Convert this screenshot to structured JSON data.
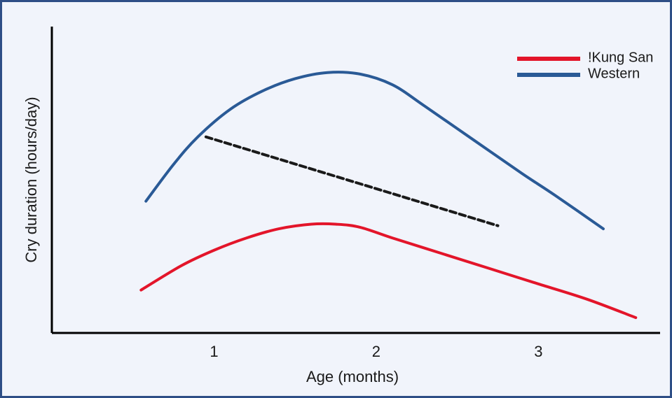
{
  "chart_data": {
    "type": "line",
    "xlabel": "Age (months)",
    "ylabel": "Cry duration (hours/day)",
    "xlim": [
      0,
      3.75
    ],
    "ylim": [
      0,
      1
    ],
    "x_ticks": [
      1,
      2,
      3
    ],
    "y_ticks": [],
    "grid": false,
    "legend_position": "top-right",
    "series": [
      {
        "name": "!Kung San",
        "color": "#e3152a",
        "style": "solid",
        "points": [
          [
            0.55,
            0.14
          ],
          [
            0.8,
            0.22
          ],
          [
            1.0,
            0.27
          ],
          [
            1.2,
            0.31
          ],
          [
            1.4,
            0.34
          ],
          [
            1.6,
            0.355
          ],
          [
            1.75,
            0.355
          ],
          [
            1.9,
            0.345
          ],
          [
            2.1,
            0.31
          ],
          [
            2.4,
            0.26
          ],
          [
            2.7,
            0.21
          ],
          [
            3.0,
            0.16
          ],
          [
            3.3,
            0.11
          ],
          [
            3.6,
            0.05
          ]
        ]
      },
      {
        "name": "Western",
        "color": "#2a5a96",
        "style": "solid",
        "points": [
          [
            0.58,
            0.43
          ],
          [
            0.75,
            0.55
          ],
          [
            0.9,
            0.64
          ],
          [
            1.1,
            0.73
          ],
          [
            1.3,
            0.79
          ],
          [
            1.5,
            0.83
          ],
          [
            1.7,
            0.85
          ],
          [
            1.9,
            0.845
          ],
          [
            2.1,
            0.81
          ],
          [
            2.3,
            0.74
          ],
          [
            2.6,
            0.63
          ],
          [
            2.9,
            0.52
          ],
          [
            3.1,
            0.45
          ],
          [
            3.4,
            0.34
          ]
        ]
      },
      {
        "color": "#1a1a1a",
        "style": "dashed",
        "points": [
          [
            0.95,
            0.64
          ],
          [
            2.75,
            0.35
          ]
        ]
      }
    ]
  }
}
